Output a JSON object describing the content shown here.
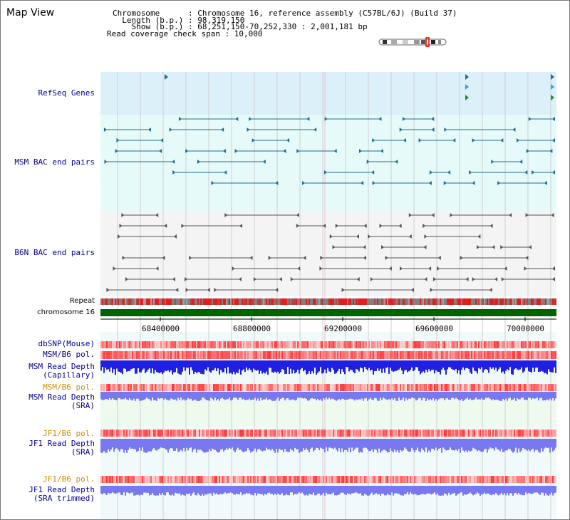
{
  "title": "Map View",
  "header": {
    "chromosome_line": "Chromosome      : Chromosome 16, reference assembly (C57BL/6J) (Build 37)",
    "length_line": "  Length (b.p.) : 98,319,150",
    "show_line": "    Show (b.p.) : 68,251,150-70,252,330 : 2,001,181 bp",
    "coverage_line": "Read coverage check span : 10,000"
  },
  "tracks": {
    "refseq": "RefSeq Genes",
    "msm_bac": "MSM BAC end pairs",
    "b6n_bac": "B6N BAC end pairs",
    "repeat": "Repeat",
    "chromosome": "chromosome 16",
    "dbsnp": "dbSNP(Mouse)",
    "msm_b6_pol": "MSM/B6 pol.",
    "msm_depth_cap_1": "MSM Read Depth",
    "msm_depth_cap_2": "(Capillary)",
    "msm_b6_pol_2": "MSM/B6 pol.",
    "msm_depth_sra_1": "MSM Read Depth",
    "msm_depth_sra_2": "(SRA)",
    "jf1_b6_pol": "JF1/B6 pol.",
    "jf1_depth_sra_1": "JF1 Read Depth",
    "jf1_depth_sra_2": "(SRA)",
    "jf1_b6_pol_2": "JF1/B6 pol.",
    "jf1_depth_trim_1": "JF1 Read Depth",
    "jf1_depth_trim_2": "(SRA trimmed)"
  },
  "axis_ticks": [
    "68400000",
    "68800000",
    "69200000",
    "69600000",
    "70000000"
  ],
  "colors": {
    "label_blue": "#00008b",
    "label_orange": "#d28c00",
    "refseq_bg": "#dcf0fa",
    "bac_bg": "#e6fafa",
    "msm_gene": "#1e6e8c",
    "b6n_gene": "#555555",
    "chromosome": "#006400",
    "depth_blue": "#2020e0",
    "depth_light": "#7878f0"
  }
}
